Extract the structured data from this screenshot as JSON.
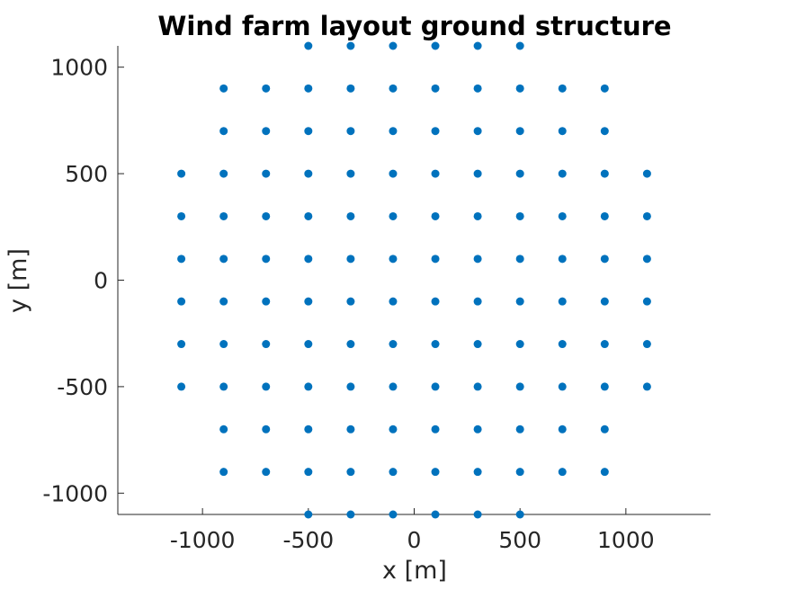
{
  "chart_data": {
    "type": "scatter",
    "title": "Wind farm layout ground structure",
    "xlabel": "x [m]",
    "ylabel": "y [m]",
    "xlim": [
      -1400,
      1400
    ],
    "ylim": [
      -1100,
      1100
    ],
    "xticks": [
      -1000,
      -500,
      0,
      500,
      1000
    ],
    "yticks": [
      -1000,
      -500,
      0,
      500,
      1000
    ],
    "xtick_labels": [
      "-1000",
      "-500",
      "0",
      "500",
      "1000"
    ],
    "ytick_labels": [
      "-1000",
      "-500",
      "0",
      "500",
      "1000"
    ],
    "grid": false,
    "marker_color": "#0072BD",
    "axis_color": "#262626",
    "points": [
      [
        -500,
        1100
      ],
      [
        -300,
        1100
      ],
      [
        -100,
        1100
      ],
      [
        100,
        1100
      ],
      [
        300,
        1100
      ],
      [
        500,
        1100
      ],
      [
        -900,
        900
      ],
      [
        -700,
        900
      ],
      [
        -500,
        900
      ],
      [
        -300,
        900
      ],
      [
        -100,
        900
      ],
      [
        100,
        900
      ],
      [
        300,
        900
      ],
      [
        500,
        900
      ],
      [
        700,
        900
      ],
      [
        900,
        900
      ],
      [
        -900,
        700
      ],
      [
        -700,
        700
      ],
      [
        -500,
        700
      ],
      [
        -300,
        700
      ],
      [
        -100,
        700
      ],
      [
        100,
        700
      ],
      [
        300,
        700
      ],
      [
        500,
        700
      ],
      [
        700,
        700
      ],
      [
        900,
        700
      ],
      [
        -1100,
        500
      ],
      [
        -900,
        500
      ],
      [
        -700,
        500
      ],
      [
        -500,
        500
      ],
      [
        -300,
        500
      ],
      [
        -100,
        500
      ],
      [
        100,
        500
      ],
      [
        300,
        500
      ],
      [
        500,
        500
      ],
      [
        700,
        500
      ],
      [
        900,
        500
      ],
      [
        1100,
        500
      ],
      [
        -1100,
        300
      ],
      [
        -900,
        300
      ],
      [
        -700,
        300
      ],
      [
        -500,
        300
      ],
      [
        -300,
        300
      ],
      [
        -100,
        300
      ],
      [
        100,
        300
      ],
      [
        300,
        300
      ],
      [
        500,
        300
      ],
      [
        700,
        300
      ],
      [
        900,
        300
      ],
      [
        1100,
        300
      ],
      [
        -1100,
        100
      ],
      [
        -900,
        100
      ],
      [
        -700,
        100
      ],
      [
        -500,
        100
      ],
      [
        -300,
        100
      ],
      [
        -100,
        100
      ],
      [
        100,
        100
      ],
      [
        300,
        100
      ],
      [
        500,
        100
      ],
      [
        700,
        100
      ],
      [
        900,
        100
      ],
      [
        1100,
        100
      ],
      [
        -1100,
        -100
      ],
      [
        -900,
        -100
      ],
      [
        -700,
        -100
      ],
      [
        -500,
        -100
      ],
      [
        -300,
        -100
      ],
      [
        -100,
        -100
      ],
      [
        100,
        -100
      ],
      [
        300,
        -100
      ],
      [
        500,
        -100
      ],
      [
        700,
        -100
      ],
      [
        900,
        -100
      ],
      [
        1100,
        -100
      ],
      [
        -1100,
        -300
      ],
      [
        -900,
        -300
      ],
      [
        -700,
        -300
      ],
      [
        -500,
        -300
      ],
      [
        -300,
        -300
      ],
      [
        -100,
        -300
      ],
      [
        100,
        -300
      ],
      [
        300,
        -300
      ],
      [
        500,
        -300
      ],
      [
        700,
        -300
      ],
      [
        900,
        -300
      ],
      [
        1100,
        -300
      ],
      [
        -1100,
        -500
      ],
      [
        -900,
        -500
      ],
      [
        -700,
        -500
      ],
      [
        -500,
        -500
      ],
      [
        -300,
        -500
      ],
      [
        -100,
        -500
      ],
      [
        100,
        -500
      ],
      [
        300,
        -500
      ],
      [
        500,
        -500
      ],
      [
        700,
        -500
      ],
      [
        900,
        -500
      ],
      [
        1100,
        -500
      ],
      [
        -900,
        -700
      ],
      [
        -700,
        -700
      ],
      [
        -500,
        -700
      ],
      [
        -300,
        -700
      ],
      [
        -100,
        -700
      ],
      [
        100,
        -700
      ],
      [
        300,
        -700
      ],
      [
        500,
        -700
      ],
      [
        700,
        -700
      ],
      [
        900,
        -700
      ],
      [
        -900,
        -900
      ],
      [
        -700,
        -900
      ],
      [
        -500,
        -900
      ],
      [
        -300,
        -900
      ],
      [
        -100,
        -900
      ],
      [
        100,
        -900
      ],
      [
        300,
        -900
      ],
      [
        500,
        -900
      ],
      [
        700,
        -900
      ],
      [
        900,
        -900
      ],
      [
        -500,
        -1100
      ],
      [
        -300,
        -1100
      ],
      [
        -100,
        -1100
      ],
      [
        100,
        -1100
      ],
      [
        300,
        -1100
      ],
      [
        500,
        -1100
      ]
    ]
  }
}
